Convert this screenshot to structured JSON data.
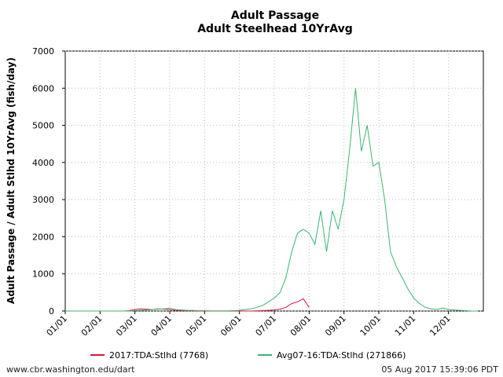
{
  "chart_data": {
    "type": "line",
    "title": "Adult Passage",
    "subtitle": "Adult Steelhead 10YrAvg",
    "y_label": "Adult Passage / Adult Stlhd 10YrAvg (fish/day)",
    "source": "www.cbr.washington.edu/dart",
    "timestamp": "05 Aug 2017 15:39:06 PDT",
    "categories": [
      "01/01",
      null,
      null,
      null,
      null,
      null,
      "02/01",
      null,
      null,
      null,
      null,
      null,
      "03/01",
      null,
      null,
      null,
      null,
      null,
      "04/01",
      null,
      null,
      null,
      null,
      null,
      "05/01",
      null,
      null,
      null,
      null,
      null,
      "06/01",
      null,
      null,
      null,
      null,
      null,
      "07/01",
      null,
      null,
      null,
      null,
      null,
      "08/01",
      null,
      null,
      null,
      null,
      null,
      "09/01",
      null,
      null,
      null,
      null,
      null,
      "10/01",
      null,
      null,
      null,
      null,
      null,
      "11/01",
      null,
      null,
      null,
      null,
      null,
      "12/01",
      null,
      null,
      null,
      null,
      null
    ],
    "series": [
      {
        "name": "2017:TDA:Stlhd (7768)",
        "color": "#dc143c",
        "values": [
          null,
          null,
          null,
          null,
          null,
          null,
          null,
          null,
          null,
          null,
          0,
          10,
          40,
          60,
          50,
          40,
          60,
          50,
          40,
          20,
          10,
          10,
          5,
          0,
          0,
          0,
          0,
          0,
          0,
          0,
          0,
          0,
          0,
          5,
          10,
          20,
          30,
          50,
          100,
          200,
          250,
          330,
          100,
          null,
          null,
          null,
          null,
          null,
          null,
          null,
          null,
          null,
          null,
          null,
          null,
          null,
          null,
          null,
          null,
          null,
          null,
          null,
          null,
          null,
          null,
          null,
          null,
          null,
          null,
          null,
          null,
          null
        ]
      },
      {
        "name": "Avg07-16:TDA:Stlhd (271866)",
        "color": "#3cb371",
        "values": [
          0,
          0,
          0,
          0,
          0,
          0,
          0,
          0,
          0,
          0,
          0,
          0,
          10,
          20,
          30,
          40,
          50,
          60,
          80,
          40,
          30,
          20,
          20,
          10,
          10,
          5,
          5,
          5,
          5,
          10,
          20,
          40,
          60,
          100,
          150,
          250,
          350,
          500,
          900,
          1600,
          2100,
          2200,
          2100,
          1800,
          2700,
          1600,
          2700,
          2200,
          3000,
          4400,
          6000,
          4300,
          5000,
          3900,
          4000,
          3000,
          1600,
          1200,
          900,
          600,
          350,
          200,
          100,
          60,
          40,
          80,
          40,
          30,
          20,
          10,
          0,
          0
        ]
      }
    ],
    "ylim": [
      0,
      7000
    ],
    "yticks": [
      0,
      1000,
      2000,
      3000,
      4000,
      5000,
      6000,
      7000
    ],
    "grid": true
  }
}
